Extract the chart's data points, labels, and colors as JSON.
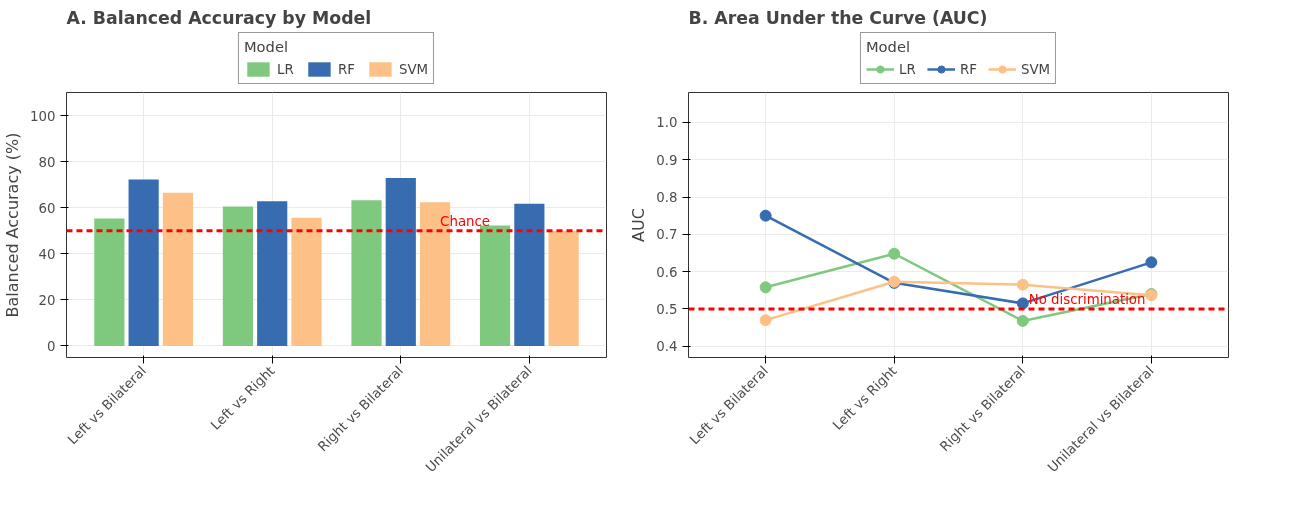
{
  "chart_data": [
    {
      "type": "bar",
      "title": "A. Balanced Accuracy by Model",
      "ylabel": "Balanced Accuracy (%)",
      "legend_title": "Model",
      "categories": [
        "Left vs Bilateral",
        "Left vs Right",
        "Right vs Bilateral",
        "Unilateral vs Bilateral"
      ],
      "series": [
        {
          "name": "LR",
          "color": "#7fc97f",
          "values": [
            55.3,
            60.5,
            63.2,
            52.3
          ]
        },
        {
          "name": "RF",
          "color": "#386cb0",
          "values": [
            72.2,
            62.8,
            72.9,
            61.7
          ]
        },
        {
          "name": "SVM",
          "color": "#fdc086",
          "values": [
            66.5,
            55.6,
            62.4,
            50.0
          ]
        }
      ],
      "ylim": [
        -5,
        110
      ],
      "yticks": [
        0,
        20,
        40,
        60,
        80,
        100
      ],
      "grid": true,
      "legend": "top",
      "ref_lines": [
        {
          "axis": "y",
          "value": 50,
          "label": "Chance",
          "color": "#ff0000",
          "line_style": "dashed"
        }
      ]
    },
    {
      "type": "line",
      "title": "B. Area Under the Curve (AUC)",
      "ylabel": "AUC",
      "legend_title": "Model",
      "categories": [
        "Left vs Bilateral",
        "Left vs Right",
        "Right vs Bilateral",
        "Unilateral vs Bilateral"
      ],
      "series": [
        {
          "name": "LR",
          "color": "#7fc97f",
          "values": [
            0.558,
            0.648,
            0.468,
            0.54
          ]
        },
        {
          "name": "RF",
          "color": "#386cb0",
          "values": [
            0.75,
            0.57,
            0.515,
            0.625
          ]
        },
        {
          "name": "SVM",
          "color": "#fdc086",
          "values": [
            0.47,
            0.573,
            0.565,
            0.537
          ]
        }
      ],
      "ylim": [
        0.37,
        1.08
      ],
      "yticks": [
        0.4,
        0.5,
        0.6,
        0.7,
        0.8,
        0.9,
        {
          "value": 1.0,
          "label": "1.0"
        }
      ],
      "grid": true,
      "legend": "top",
      "marker": "circle",
      "line_style": "solid",
      "ref_lines": [
        {
          "axis": "y",
          "value": 0.5,
          "label": "No discrimination",
          "color": "#ff0000",
          "line_style": "dashed"
        }
      ]
    }
  ]
}
